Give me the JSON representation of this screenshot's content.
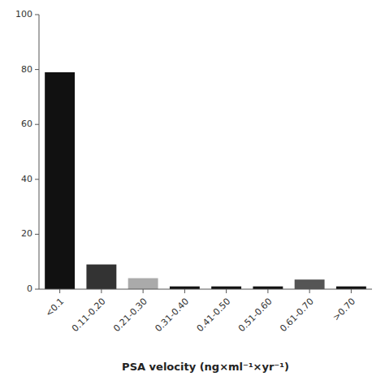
{
  "chart_data": {
    "type": "bar",
    "xlabel": "PSA velocity (ng×ml⁻¹×yr⁻¹)",
    "categories": [
      "<0.1",
      "0.11-0.20",
      "0.21-0.30",
      "0.31-0.40",
      "0.41-0.50",
      "0.51-0.60",
      "0.61-0.70",
      ">0.70"
    ],
    "values": [
      79,
      9,
      4,
      1,
      1,
      1,
      3.5,
      1
    ],
    "colors": [
      "#111111",
      "#333333",
      "#aaaaaa",
      "#111111",
      "#111111",
      "#111111",
      "#555555",
      "#111111"
    ],
    "ylim": [
      0,
      100
    ],
    "yticks": [
      0,
      20,
      40,
      60,
      80,
      100
    ]
  }
}
